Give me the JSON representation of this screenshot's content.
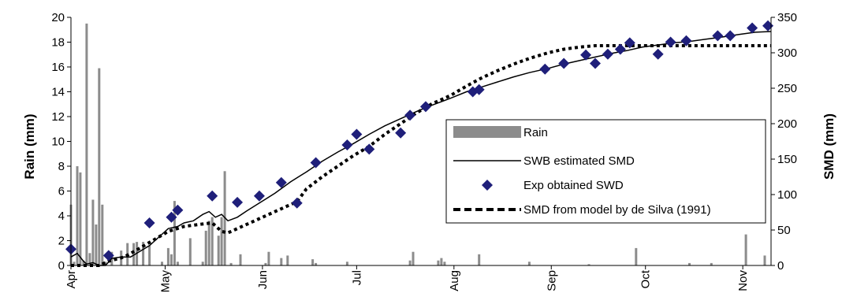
{
  "chart_data": {
    "type": "bar+line",
    "title": "",
    "x_axis": {
      "type": "date",
      "range": [
        "04-01",
        "11-10"
      ],
      "tick_labels": [
        "Apr",
        "May",
        "Jun",
        "Jul",
        "Aug",
        "Sep",
        "Oct",
        "Nov"
      ],
      "tick_dates": [
        "04-01",
        "05-01",
        "06-01",
        "07-01",
        "08-01",
        "09-01",
        "10-01",
        "11-01"
      ]
    },
    "y_left": {
      "label": "Rain (mm)",
      "range": [
        0,
        20
      ],
      "ticks": [
        0,
        2,
        4,
        6,
        8,
        10,
        12,
        14,
        16,
        18,
        20
      ]
    },
    "y_right": {
      "label": "SMD (mm)",
      "range": [
        0,
        350
      ],
      "ticks": [
        0,
        50,
        100,
        150,
        200,
        250,
        300,
        350
      ]
    },
    "legend": {
      "placement": "right-center",
      "entries": [
        "Rain",
        "SWB estimated SMD",
        "Exp obtained SWD",
        "SMD from model by de Silva (1991)"
      ]
    },
    "series": [
      {
        "name": "Rain",
        "kind": "bar",
        "axis": "left",
        "color": "#8c8c8c",
        "points": [
          [
            "04-01",
            4.9
          ],
          [
            "04-02",
            0.3
          ],
          [
            "04-03",
            8.0
          ],
          [
            "04-04",
            7.5
          ],
          [
            "04-05",
            0.4
          ],
          [
            "04-06",
            19.5
          ],
          [
            "04-07",
            1.0
          ],
          [
            "04-08",
            5.3
          ],
          [
            "04-09",
            3.3
          ],
          [
            "04-10",
            15.9
          ],
          [
            "04-11",
            4.9
          ],
          [
            "04-12",
            0.3
          ],
          [
            "04-14",
            1.1
          ],
          [
            "04-17",
            1.2
          ],
          [
            "04-19",
            1.8
          ],
          [
            "04-21",
            1.8
          ],
          [
            "04-22",
            1.9
          ],
          [
            "04-24",
            1.9
          ],
          [
            "04-26",
            1.6
          ],
          [
            "04-30",
            0.3
          ],
          [
            "05-02",
            1.4
          ],
          [
            "05-03",
            0.9
          ],
          [
            "05-04",
            5.2
          ],
          [
            "05-05",
            0.3
          ],
          [
            "05-09",
            2.2
          ],
          [
            "05-13",
            0.3
          ],
          [
            "05-14",
            2.8
          ],
          [
            "05-15",
            3.6
          ],
          [
            "05-16",
            3.9
          ],
          [
            "05-18",
            2.4
          ],
          [
            "05-19",
            3.9
          ],
          [
            "05-20",
            7.6
          ],
          [
            "05-22",
            0.2
          ],
          [
            "05-25",
            0.9
          ],
          [
            "06-02",
            0.2
          ],
          [
            "06-03",
            1.1
          ],
          [
            "06-07",
            0.6
          ],
          [
            "06-09",
            0.8
          ],
          [
            "06-17",
            0.5
          ],
          [
            "06-18",
            0.2
          ],
          [
            "06-28",
            0.3
          ],
          [
            "07-18",
            0.4
          ],
          [
            "07-19",
            1.1
          ],
          [
            "07-27",
            0.4
          ],
          [
            "07-28",
            0.6
          ],
          [
            "07-29",
            0.3
          ],
          [
            "08-09",
            0.9
          ],
          [
            "08-25",
            0.3
          ],
          [
            "09-13",
            0.1
          ],
          [
            "09-28",
            1.4
          ],
          [
            "10-15",
            0.2
          ],
          [
            "10-22",
            0.2
          ],
          [
            "11-02",
            2.5
          ],
          [
            "11-08",
            0.8
          ]
        ]
      },
      {
        "name": "SWB estimated SMD",
        "kind": "line",
        "axis": "right",
        "color": "#000000",
        "points": [
          [
            "04-01",
            12
          ],
          [
            "04-03",
            17
          ],
          [
            "04-05",
            6
          ],
          [
            "04-06",
            2
          ],
          [
            "04-08",
            4
          ],
          [
            "04-10",
            0
          ],
          [
            "04-12",
            0
          ],
          [
            "04-14",
            10
          ],
          [
            "04-17",
            12
          ],
          [
            "04-20",
            12
          ],
          [
            "04-23",
            20
          ],
          [
            "04-26",
            28
          ],
          [
            "04-29",
            40
          ],
          [
            "05-02",
            52
          ],
          [
            "05-05",
            55
          ],
          [
            "05-07",
            60
          ],
          [
            "05-10",
            63
          ],
          [
            "05-13",
            72
          ],
          [
            "05-15",
            76
          ],
          [
            "05-17",
            68
          ],
          [
            "05-19",
            72
          ],
          [
            "05-21",
            63
          ],
          [
            "05-24",
            68
          ],
          [
            "05-27",
            77
          ],
          [
            "05-31",
            88
          ],
          [
            "06-05",
            102
          ],
          [
            "06-10",
            118
          ],
          [
            "06-15",
            132
          ],
          [
            "06-20",
            147
          ],
          [
            "06-25",
            160
          ],
          [
            "06-30",
            172
          ],
          [
            "07-05",
            185
          ],
          [
            "07-10",
            197
          ],
          [
            "07-15",
            207
          ],
          [
            "07-20",
            217
          ],
          [
            "07-25",
            226
          ],
          [
            "07-31",
            236
          ],
          [
            "08-05",
            245
          ],
          [
            "08-10",
            252
          ],
          [
            "08-15",
            259
          ],
          [
            "08-20",
            266
          ],
          [
            "08-25",
            272
          ],
          [
            "08-31",
            278
          ],
          [
            "09-05",
            284
          ],
          [
            "09-10",
            289
          ],
          [
            "09-15",
            294
          ],
          [
            "09-20",
            299
          ],
          [
            "09-25",
            303
          ],
          [
            "09-30",
            308
          ],
          [
            "10-05",
            311
          ],
          [
            "10-10",
            314
          ],
          [
            "10-15",
            316
          ],
          [
            "10-20",
            319
          ],
          [
            "10-25",
            322
          ],
          [
            "10-31",
            326
          ],
          [
            "11-05",
            329
          ],
          [
            "11-10",
            330
          ]
        ]
      },
      {
        "name": "Exp obtained SWD",
        "kind": "scatter",
        "axis": "right",
        "marker": "diamond",
        "color": "#1f1f7a",
        "points": [
          [
            "04-01",
            23
          ],
          [
            "04-13",
            14
          ],
          [
            "04-26",
            60
          ],
          [
            "05-03",
            68
          ],
          [
            "05-05",
            78
          ],
          [
            "05-16",
            98
          ],
          [
            "05-24",
            89
          ],
          [
            "05-31",
            98
          ],
          [
            "06-07",
            117
          ],
          [
            "06-12",
            88
          ],
          [
            "06-18",
            145
          ],
          [
            "06-28",
            170
          ],
          [
            "07-01",
            185
          ],
          [
            "07-05",
            164
          ],
          [
            "07-15",
            187
          ],
          [
            "07-18",
            212
          ],
          [
            "07-23",
            224
          ],
          [
            "08-07",
            245
          ],
          [
            "08-09",
            248
          ],
          [
            "08-30",
            277
          ],
          [
            "09-05",
            285
          ],
          [
            "09-12",
            297
          ],
          [
            "09-15",
            285
          ],
          [
            "09-19",
            298
          ],
          [
            "09-23",
            305
          ],
          [
            "09-26",
            314
          ],
          [
            "10-05",
            298
          ],
          [
            "10-09",
            315
          ],
          [
            "10-14",
            317
          ],
          [
            "10-24",
            324
          ],
          [
            "10-28",
            324
          ],
          [
            "11-04",
            335
          ],
          [
            "11-09",
            338
          ]
        ]
      },
      {
        "name": "SMD from model by de Silva (1991)",
        "kind": "line",
        "axis": "right",
        "style": "dotted",
        "color": "#000000",
        "points": [
          [
            "04-01",
            0
          ],
          [
            "04-10",
            0
          ],
          [
            "04-13",
            6
          ],
          [
            "04-18",
            12
          ],
          [
            "04-22",
            22
          ],
          [
            "04-27",
            35
          ],
          [
            "05-02",
            48
          ],
          [
            "05-07",
            55
          ],
          [
            "05-12",
            58
          ],
          [
            "05-16",
            60
          ],
          [
            "05-19",
            48
          ],
          [
            "05-21",
            46
          ],
          [
            "05-24",
            52
          ],
          [
            "05-29",
            62
          ],
          [
            "06-03",
            72
          ],
          [
            "06-08",
            82
          ],
          [
            "06-12",
            90
          ],
          [
            "06-15",
            108
          ],
          [
            "06-20",
            125
          ],
          [
            "06-25",
            140
          ],
          [
            "06-30",
            155
          ],
          [
            "07-05",
            168
          ],
          [
            "07-10",
            185
          ],
          [
            "07-15",
            200
          ],
          [
            "07-20",
            215
          ],
          [
            "07-25",
            228
          ],
          [
            "07-31",
            240
          ],
          [
            "08-05",
            253
          ],
          [
            "08-10",
            265
          ],
          [
            "08-15",
            275
          ],
          [
            "08-20",
            284
          ],
          [
            "08-25",
            292
          ],
          [
            "08-31",
            300
          ],
          [
            "09-05",
            305
          ],
          [
            "09-10",
            308
          ],
          [
            "09-15",
            310
          ],
          [
            "11-10",
            310
          ]
        ]
      }
    ]
  }
}
